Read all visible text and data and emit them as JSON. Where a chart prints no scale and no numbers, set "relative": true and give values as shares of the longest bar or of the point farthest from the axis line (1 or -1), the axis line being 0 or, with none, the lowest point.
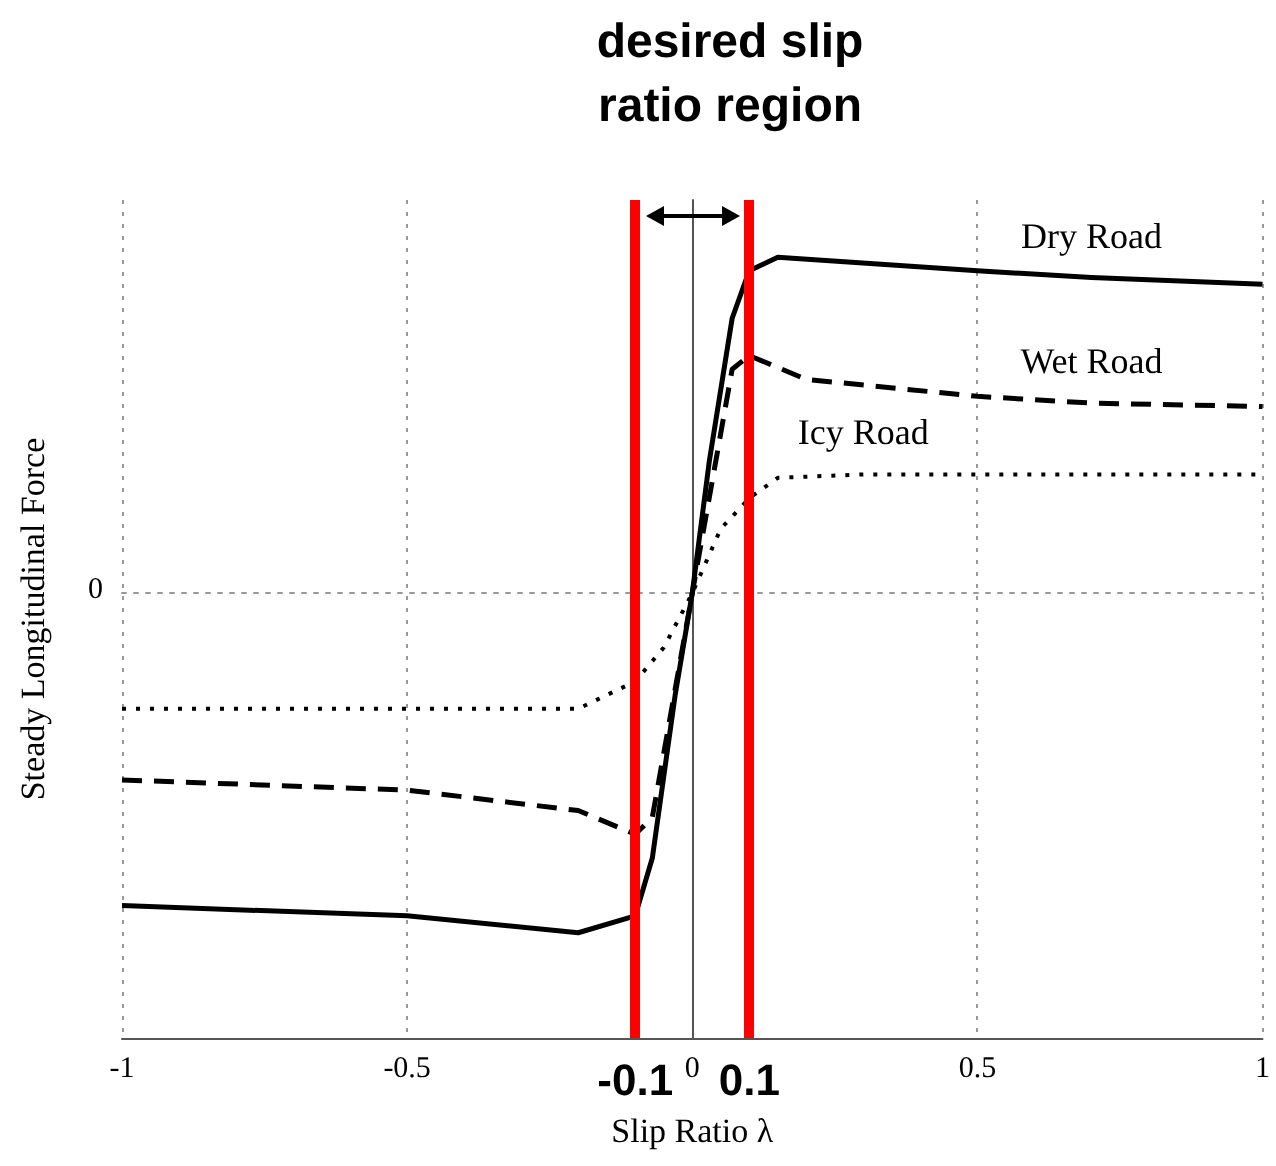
{
  "chart_data": {
    "type": "line",
    "title": "desired slip\nratio region",
    "xlabel": "Slip Ratio λ",
    "ylabel": "Steady Longitudinal Force",
    "relative": true,
    "xlim": [
      -1,
      1
    ],
    "xticks": [
      -1,
      -0.5,
      0,
      0.5,
      1
    ],
    "annotations": [
      "0"
    ],
    "grid": true,
    "legend": false,
    "marker": "none",
    "series": [
      {
        "name": "Dry Road",
        "color": "#000000",
        "line_style": "solid",
        "x": [
          -1,
          -0.5,
          -0.2,
          -0.1,
          -0.07,
          -0.03,
          0,
          0.03,
          0.07,
          0.1,
          0.15,
          0.5,
          0.7,
          1
        ],
        "values": [
          -0.92,
          -0.95,
          -1,
          -0.95,
          -0.78,
          -0.3,
          0,
          0.39,
          0.81,
          0.95,
          0.99,
          0.95,
          0.93,
          0.91
        ]
      },
      {
        "name": "Wet Road",
        "color": "#000000",
        "line_style": "dashed",
        "x": [
          -1,
          -0.5,
          -0.2,
          -0.1,
          -0.07,
          0,
          0.07,
          0.1,
          0.2,
          0.5,
          0.7,
          1
        ],
        "values": [
          -0.55,
          -0.58,
          -0.64,
          -0.71,
          -0.66,
          0,
          0.66,
          0.7,
          0.63,
          0.58,
          0.56,
          0.55
        ]
      },
      {
        "name": "Icy Road",
        "color": "#000000",
        "line_style": "dotted",
        "x": [
          -1,
          -0.5,
          -0.2,
          -0.1,
          -0.05,
          0,
          0.05,
          0.1,
          0.15,
          0.3,
          0.5,
          1
        ],
        "values": [
          -0.34,
          -0.34,
          -0.34,
          -0.26,
          -0.16,
          0,
          0.19,
          0.28,
          0.34,
          0.35,
          0.35,
          0.35
        ]
      }
    ],
    "ref_lines": [
      {
        "axis": "x",
        "value": -0.1,
        "label": "-0.1",
        "color": "#ff0000"
      },
      {
        "axis": "x",
        "value": 0.1,
        "label": "0.1",
        "color": "#ff0000"
      }
    ]
  }
}
